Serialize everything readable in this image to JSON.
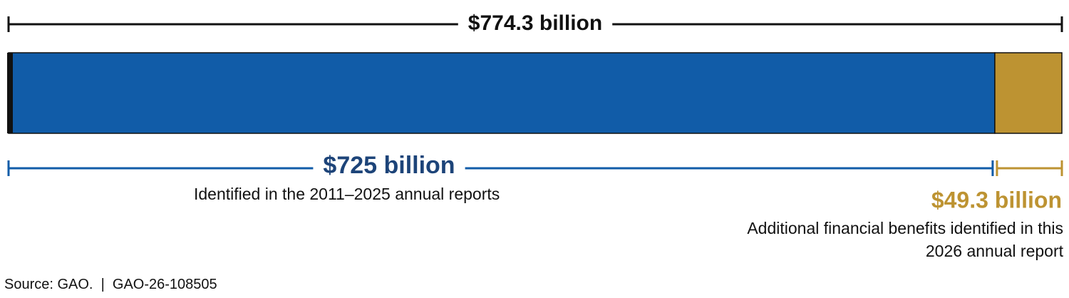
{
  "chart_data": {
    "type": "stacked-bar",
    "xlim": [
      0,
      774.3
    ],
    "total": {
      "value": 774.3,
      "label": "$774.3 billion"
    },
    "series": [
      {
        "name": "Identified in the 2011–2025 annual reports",
        "color": "#115ca8",
        "label_color": "#1d4479",
        "values": [
          725
        ],
        "value_labels": [
          "$725 billion"
        ]
      },
      {
        "name": "Additional financial benefits identified in this 2026 annual report",
        "color": "#bd9332",
        "label_color": "#bd9332",
        "values": [
          49.3
        ],
        "value_labels": [
          "$49.3 billion"
        ]
      }
    ],
    "source": "Source: GAO.  |  GAO-26-108505"
  }
}
